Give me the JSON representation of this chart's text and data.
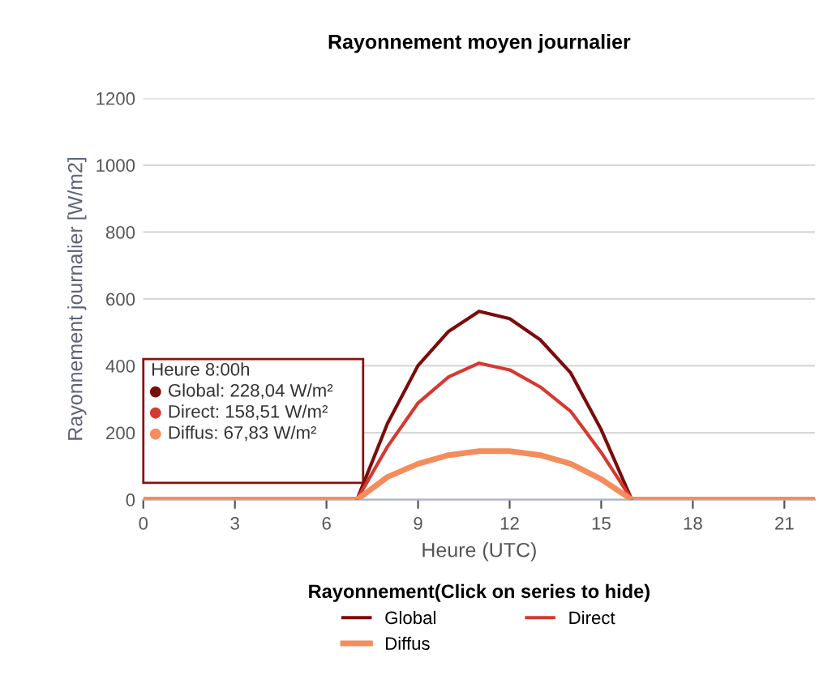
{
  "chart_data": {
    "type": "line",
    "title": "Rayonnement moyen journalier",
    "xlabel": "Heure (UTC)",
    "ylabel": "Rayonnement journalier [W/m2]",
    "legend_title": "Rayonnement(Click on series to hide)",
    "x": [
      0,
      1,
      2,
      3,
      4,
      5,
      6,
      7,
      8,
      9,
      10,
      11,
      12,
      13,
      14,
      15,
      16,
      17,
      18,
      19,
      20,
      21,
      22
    ],
    "series": [
      {
        "name": "Global",
        "color": "#7b0c0c",
        "values": [
          null,
          null,
          null,
          null,
          null,
          null,
          null,
          0,
          228.04,
          401,
          503,
          563,
          541,
          478,
          379,
          209,
          0,
          null,
          null,
          null,
          null,
          null,
          null
        ]
      },
      {
        "name": "Direct",
        "color": "#d43a30",
        "values": [
          null,
          null,
          null,
          null,
          null,
          null,
          null,
          0,
          158.51,
          289,
          367,
          408,
          388,
          337,
          264,
          141,
          0,
          null,
          null,
          null,
          null,
          null,
          null
        ]
      },
      {
        "name": "Diffus",
        "color": "#f48c5c",
        "values": [
          0,
          0,
          0,
          0,
          0,
          0,
          0,
          0,
          67.83,
          107,
          133,
          145,
          145,
          133,
          107,
          61,
          0,
          0,
          0,
          0,
          0,
          0,
          0
        ]
      }
    ],
    "xlim": [
      0,
      22
    ],
    "xticks": [
      0,
      3,
      6,
      9,
      12,
      15,
      18,
      21
    ],
    "ylim": [
      0,
      1200
    ],
    "yticks": [
      0,
      200,
      400,
      600,
      800,
      1000,
      1200
    ],
    "grid": "y",
    "legend": "bottom",
    "annotations": [
      "Heure 8:00h",
      "Global: 228,04 W/m²",
      "Direct: 158,51 W/m²",
      "Diffus: 67,83 W/m²"
    ]
  }
}
